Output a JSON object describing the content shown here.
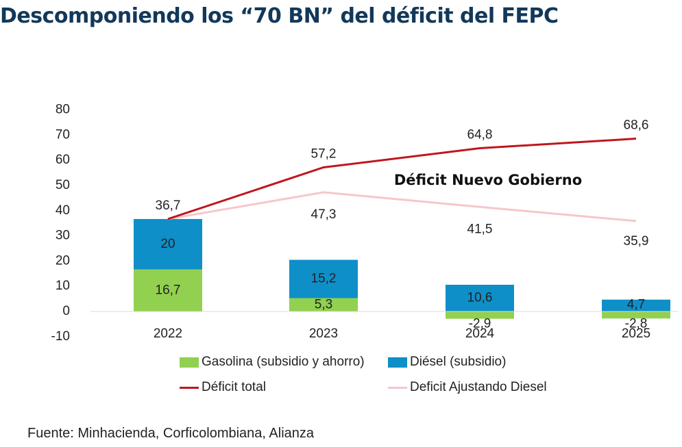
{
  "title": "Descomponiendo los “70 BN” del déficit del FEPC",
  "source": "Fuente: Minhacienda, Corficolombiana, Alianza",
  "annotation": "Déficit Nuevo Gobierno",
  "colors": {
    "gasolina": "#92d050",
    "diesel": "#0e8fc8",
    "deficit_total": "#c0161e",
    "deficit_ajustando": "#f4c7cb"
  },
  "legend": {
    "gasolina": "Gasolina (subsidio y ahorro)",
    "diesel": "Diésel (subsidio)",
    "deficit_total": "Déficit total",
    "deficit_ajustando": "Deficit Ajustando Diesel"
  },
  "chart_data": {
    "type": "bar",
    "stacked": true,
    "categories": [
      "2022",
      "2023",
      "2024",
      "2025"
    ],
    "series": [
      {
        "name": "Gasolina (subsidio y ahorro)",
        "kind": "bar",
        "values": [
          16.7,
          5.3,
          -2.9,
          -2.8
        ],
        "labels": [
          "16,7",
          "5,3",
          "-2,9",
          "-2,8"
        ]
      },
      {
        "name": "Diésel (subsidio)",
        "kind": "bar",
        "values": [
          20,
          15.2,
          10.6,
          4.7
        ],
        "labels": [
          "20",
          "15,2",
          "10,6",
          "4,7"
        ]
      },
      {
        "name": "Déficit total",
        "kind": "line",
        "values": [
          36.7,
          57.2,
          64.8,
          68.6
        ],
        "labels": [
          "36,7",
          "57,2",
          "64,8",
          "68,6"
        ]
      },
      {
        "name": "Deficit Ajustando Diesel",
        "kind": "line",
        "values": [
          36.7,
          47.3,
          41.5,
          35.9
        ],
        "labels": [
          "",
          "47,3",
          "41,5",
          "35,9"
        ]
      }
    ],
    "ylim": [
      -10,
      80
    ],
    "yticks": [
      "-10",
      "0",
      "10",
      "20",
      "30",
      "40",
      "50",
      "60",
      "70",
      "80"
    ],
    "ytick_values": [
      -10,
      0,
      10,
      20,
      30,
      40,
      50,
      60,
      70,
      80
    ],
    "grid": false,
    "legend_position": "bottom"
  }
}
